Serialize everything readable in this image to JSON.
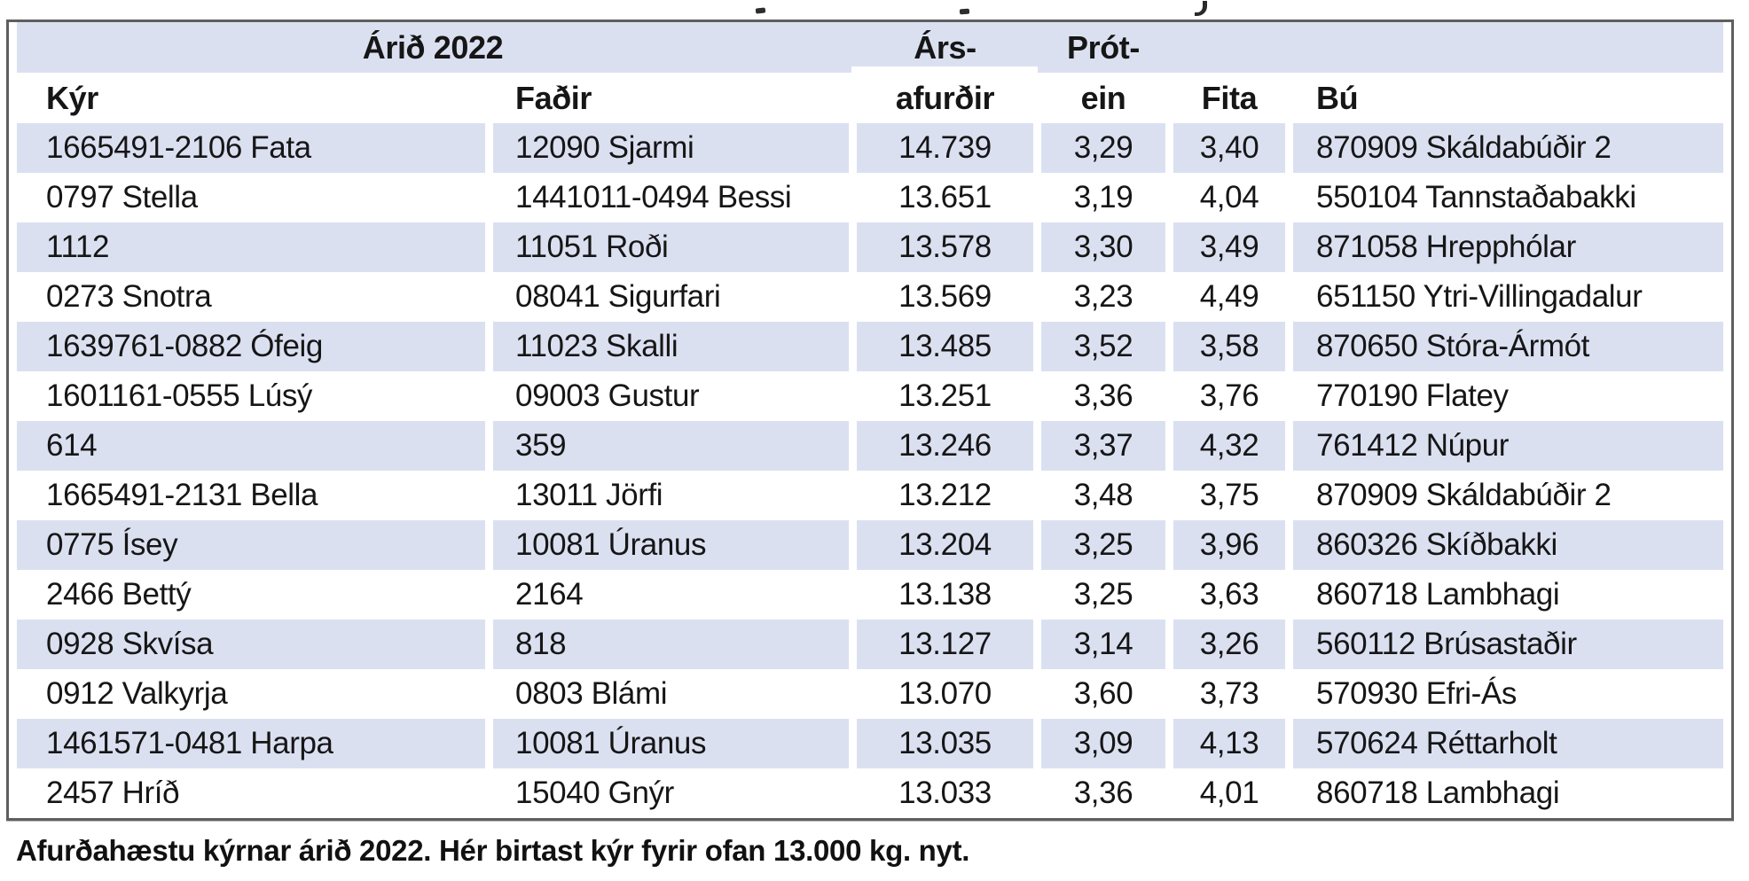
{
  "table": {
    "year_header": "Árið 2022",
    "top_headers": {
      "yield": "Árs-",
      "protein": "Prót-"
    },
    "col_headers": [
      "Kýr",
      "Faðir",
      "afurðir",
      "ein",
      "Fita",
      "Bú"
    ],
    "rows": [
      [
        "1665491-2106 Fata",
        "12090 Sjarmi",
        "14.739",
        "3,29",
        "3,40",
        "870909 Skáldabúðir 2"
      ],
      [
        "0797 Stella",
        "1441011-0494 Bessi",
        "13.651",
        "3,19",
        "4,04",
        "550104 Tannstaðabakki"
      ],
      [
        "1112",
        "11051 Roði",
        "13.578",
        "3,30",
        "3,49",
        "871058 Hrepphólar"
      ],
      [
        "0273 Snotra",
        "08041 Sigurfari",
        "13.569",
        "3,23",
        "4,49",
        "651150 Ytri-Villingadalur"
      ],
      [
        "1639761-0882 Ófeig",
        "11023 Skalli",
        "13.485",
        "3,52",
        "3,58",
        "870650 Stóra-Ármót"
      ],
      [
        "1601161-0555 Lúsý",
        "09003 Gustur",
        "13.251",
        "3,36",
        "3,76",
        "770190 Flatey"
      ],
      [
        "614",
        "359",
        "13.246",
        "3,37",
        "4,32",
        "761412 Núpur"
      ],
      [
        "1665491-2131 Bella",
        "13011 Jörfi",
        "13.212",
        "3,48",
        "3,75",
        "870909 Skáldabúðir 2"
      ],
      [
        "0775 Ísey",
        "10081 Úranus",
        "13.204",
        "3,25",
        "3,96",
        "860326 Skíðbakki"
      ],
      [
        "2466 Bettý",
        "2164",
        "13.138",
        "3,25",
        "3,63",
        "860718 Lambhagi"
      ],
      [
        "0928 Skvísa",
        "818",
        "13.127",
        "3,14",
        "3,26",
        "560112 Brúsastaðir"
      ],
      [
        "0912 Valkyrja",
        "0803 Blámi",
        "13.070",
        "3,60",
        "3,73",
        "570930 Efri-Ás"
      ],
      [
        "1461571-0481 Harpa",
        "10081 Úranus",
        "13.035",
        "3,09",
        "4,13",
        "570624 Réttarholt"
      ],
      [
        "2457 Hríð",
        "15040 Gnýr",
        "13.033",
        "3,36",
        "4,01",
        "860718 Lambhagi"
      ]
    ]
  },
  "caption": "Afurðahæstu kýrnar árið 2022. Hér birtast kýr fyrir ofan 13.000 kg. nyt.",
  "colors": {
    "row_shade": "#dbe0f1",
    "border": "#5f5f5f",
    "text": "#161616"
  }
}
